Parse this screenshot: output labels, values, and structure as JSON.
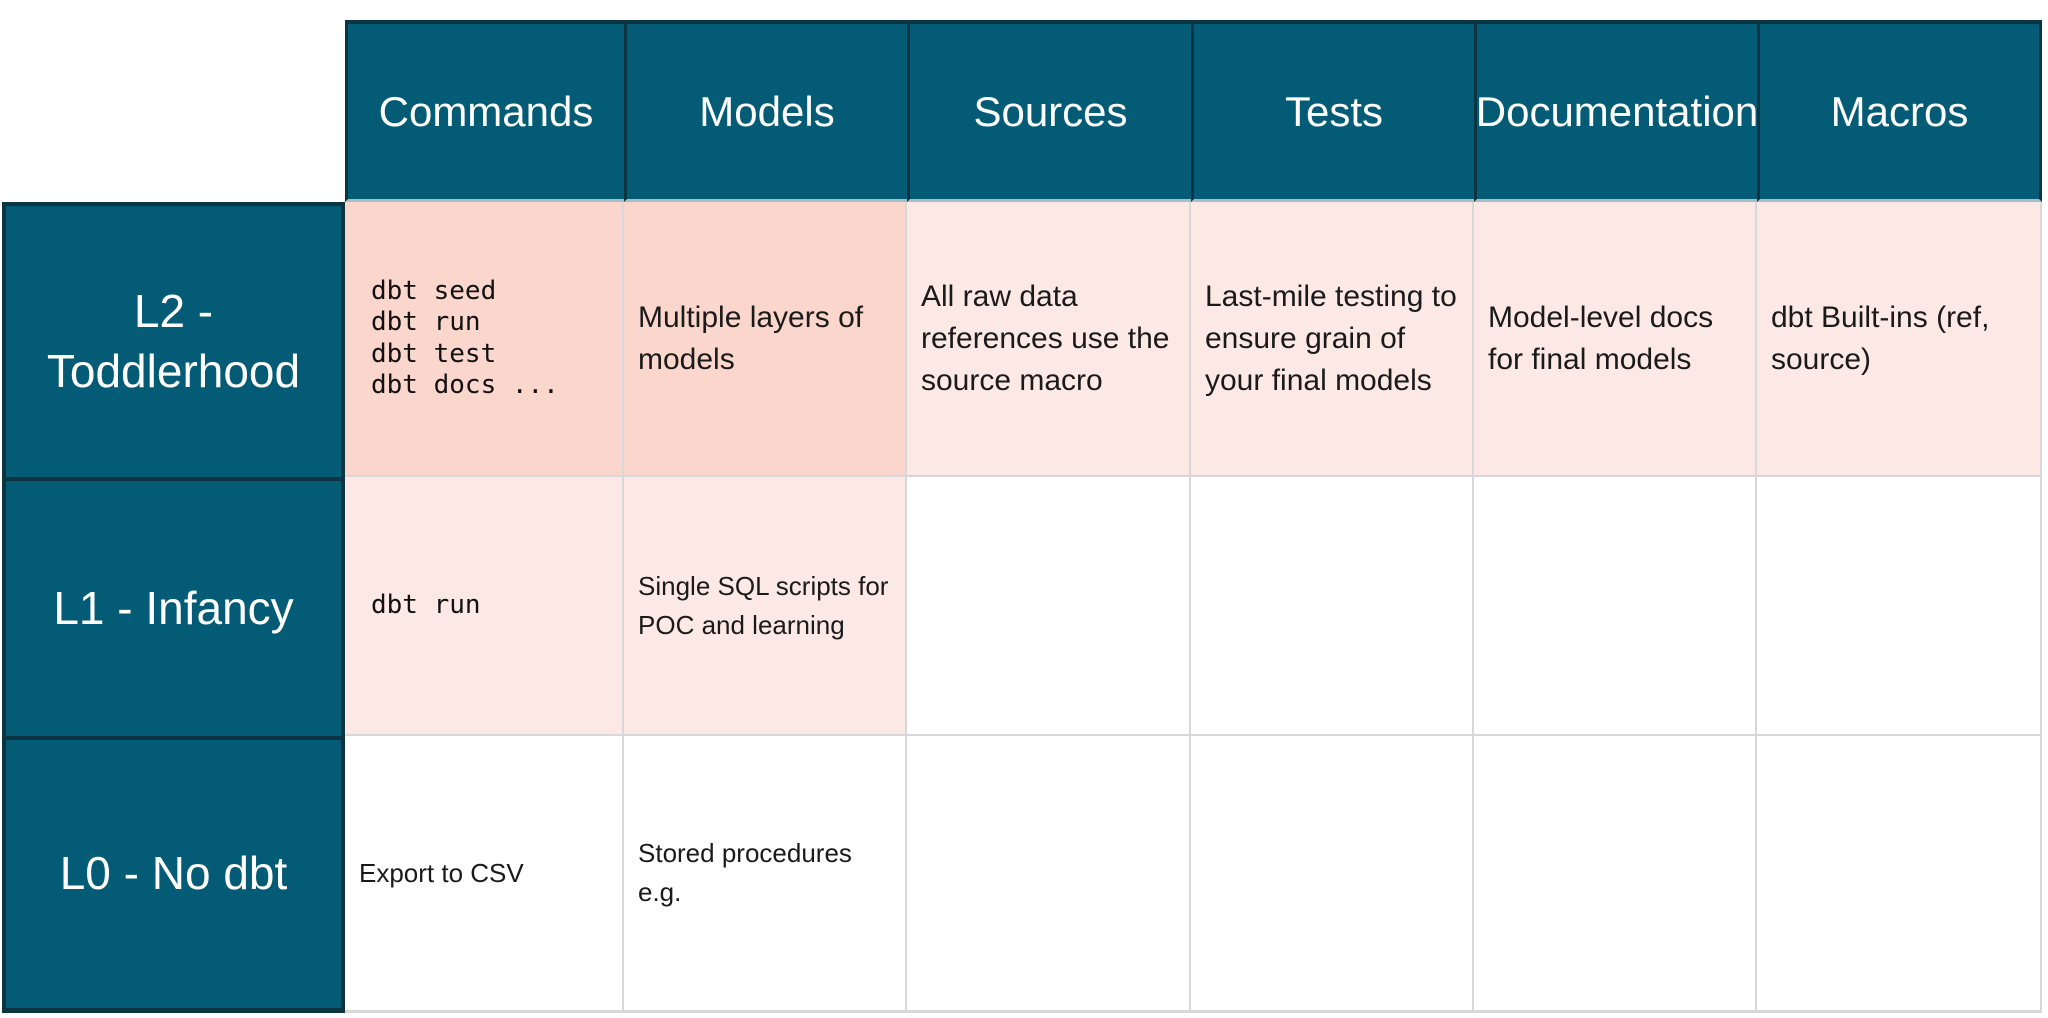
{
  "colors": {
    "teal_header": "#045B75",
    "teal_border": "#0D3541",
    "pink_strong": "#FBD6CC",
    "pink_light": "#FCE9E5",
    "grid_line": "#D8D8D8",
    "header_underline": "#A9BDC5",
    "header_text": "#FFFFFF",
    "cell_text": "#1A1A1A",
    "page_background": "#FFFFFF"
  },
  "table": {
    "column_headers": [
      "Commands",
      "Models",
      "Sources",
      "Tests",
      "Documentation",
      "Macros"
    ],
    "rows": [
      {
        "label": "L2 - Toddlerhood",
        "commands_code": [
          "dbt seed",
          "dbt run",
          "dbt test",
          "dbt docs ..."
        ],
        "models": "Multiple layers of models",
        "sources": "All raw data references use the source macro",
        "tests": "Last-mile testing to ensure grain of your final models",
        "documentation": "Model-level docs for final models",
        "macros": "dbt Built-ins (ref, source)"
      },
      {
        "label": "L1 - Infancy",
        "commands_code": [
          "dbt run"
        ],
        "models": "Single SQL scripts for POC and learning"
      },
      {
        "label": "L0 - No dbt",
        "commands": "Export to CSV",
        "models": "Stored procedures e.g."
      }
    ]
  },
  "chart_data": {
    "type": "table",
    "columns": [
      "",
      "Commands",
      "Models",
      "Sources",
      "Tests",
      "Documentation",
      "Macros"
    ],
    "rows": [
      [
        "L2 - Toddlerhood",
        "dbt seed\ndbt run\ndbt test\ndbt docs ...",
        "Multiple layers of models",
        "All raw data references use the source macro",
        "Last-mile testing to ensure grain of your final models",
        "Model-level docs for final models",
        "dbt Built-ins (ref, source)"
      ],
      [
        "L1 - Infancy",
        "dbt run",
        "Single SQL scripts for POC and learning",
        "",
        "",
        "",
        ""
      ],
      [
        "L0 - No dbt",
        "Export to CSV",
        "Stored procedures e.g.",
        "",
        "",
        "",
        ""
      ]
    ],
    "cell_fills": [
      [
        "#FBD6CC",
        "#FBD6CC",
        "#FCE9E5",
        "#FCE9E5",
        "#FCE9E5",
        "#FCE9E5"
      ],
      [
        "#FCE9E5",
        "#FCE9E5",
        "#FFFFFF",
        "#FFFFFF",
        "#FFFFFF",
        "#FFFFFF"
      ],
      [
        "#FFFFFF",
        "#FFFFFF",
        "#FFFFFF",
        "#FFFFFF",
        "#FFFFFF",
        "#FFFFFF"
      ]
    ]
  }
}
